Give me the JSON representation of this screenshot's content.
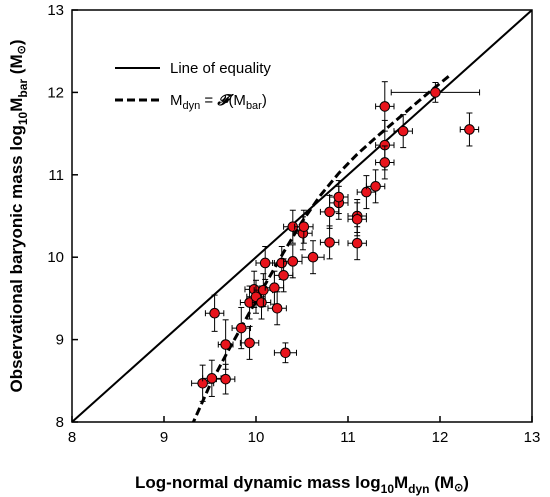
{
  "chart_data": {
    "type": "scatter",
    "title": "",
    "xlim": [
      8,
      13
    ],
    "ylim": [
      8,
      13
    ],
    "x_ticks": [
      "8",
      "9",
      "10",
      "11",
      "12",
      "13"
    ],
    "y_ticks": [
      "8",
      "9",
      "10",
      "11",
      "12",
      "13"
    ],
    "xlabel": {
      "main": "Log-normal dynamic mass log",
      "sub1": "10",
      "mid": "M",
      "sub2": "dyn",
      "unit": " (M",
      "sun": "⊙",
      "close": ")"
    },
    "ylabel": {
      "main": "Observational  baryonic mass log",
      "sub1": "10",
      "mid": "M",
      "sub2": "bar",
      "unit": " (M",
      "sun": "⊙",
      "close": ")"
    },
    "legend": {
      "position": "top-left",
      "line_of_equality": "Line of equality",
      "fit_main": "M",
      "fit_sub": "dyn",
      "fit_eq": " = ",
      "fit_func": "𝓕",
      "fit_arg_open": "(M",
      "fit_arg_sub": "bar",
      "fit_arg_close": ")"
    },
    "series": [
      {
        "style": "solid",
        "x": [
          8,
          13
        ],
        "y": [
          8,
          13
        ]
      },
      {
        "style": "dashed",
        "x": [
          9.3,
          9.5,
          9.7,
          9.9,
          10.1,
          10.3,
          10.5,
          10.7,
          10.9,
          11.1,
          11.3,
          11.5,
          11.7,
          11.9,
          12.1
        ],
        "y": [
          7.95,
          8.45,
          8.87,
          9.27,
          9.67,
          10.06,
          10.43,
          10.75,
          11.02,
          11.25,
          11.45,
          11.64,
          11.83,
          12.02,
          12.2
        ]
      }
    ],
    "points": [
      {
        "x": 9.42,
        "y": 8.47,
        "xerr": 0.12,
        "yerr": 0.22
      },
      {
        "x": 9.52,
        "y": 8.53,
        "xerr": 0.1,
        "yerr": 0.22
      },
      {
        "x": 9.55,
        "y": 9.32,
        "xerr": 0.1,
        "yerr": 0.22
      },
      {
        "x": 9.67,
        "y": 8.52,
        "xerr": 0.1,
        "yerr": 0.18
      },
      {
        "x": 9.67,
        "y": 8.94,
        "xerr": 0.08,
        "yerr": 0.3
      },
      {
        "x": 9.84,
        "y": 9.14,
        "xerr": 0.1,
        "yerr": 0.25
      },
      {
        "x": 9.93,
        "y": 8.96,
        "xerr": 0.1,
        "yerr": 0.2
      },
      {
        "x": 9.93,
        "y": 9.45,
        "xerr": 0.1,
        "yerr": 0.2
      },
      {
        "x": 9.98,
        "y": 9.61,
        "xerr": 0.1,
        "yerr": 0.22
      },
      {
        "x": 10.0,
        "y": 9.52,
        "xerr": 0.1,
        "yerr": 0.2
      },
      {
        "x": 10.06,
        "y": 9.45,
        "xerr": 0.1,
        "yerr": 0.2
      },
      {
        "x": 10.08,
        "y": 9.6,
        "xerr": 0.1,
        "yerr": 0.2
      },
      {
        "x": 10.1,
        "y": 9.93,
        "xerr": 0.1,
        "yerr": 0.2
      },
      {
        "x": 10.2,
        "y": 9.63,
        "xerr": 0.1,
        "yerr": 0.2
      },
      {
        "x": 10.23,
        "y": 9.38,
        "xerr": 0.1,
        "yerr": 0.2
      },
      {
        "x": 10.28,
        "y": 9.93,
        "xerr": 0.1,
        "yerr": 0.2
      },
      {
        "x": 10.3,
        "y": 9.78,
        "xerr": 0.1,
        "yerr": 0.2
      },
      {
        "x": 10.32,
        "y": 8.84,
        "xerr": 0.12,
        "yerr": 0.12
      },
      {
        "x": 10.4,
        "y": 9.95,
        "xerr": 0.1,
        "yerr": 0.2
      },
      {
        "x": 10.4,
        "y": 10.37,
        "xerr": 0.1,
        "yerr": 0.2
      },
      {
        "x": 10.51,
        "y": 10.29,
        "xerr": 0.1,
        "yerr": 0.2
      },
      {
        "x": 10.52,
        "y": 10.37,
        "xerr": 0.1,
        "yerr": 0.2
      },
      {
        "x": 10.62,
        "y": 10.0,
        "xerr": 0.12,
        "yerr": 0.2
      },
      {
        "x": 10.8,
        "y": 10.55,
        "xerr": 0.1,
        "yerr": 0.2
      },
      {
        "x": 10.8,
        "y": 10.18,
        "xerr": 0.1,
        "yerr": 0.2
      },
      {
        "x": 10.9,
        "y": 10.66,
        "xerr": 0.1,
        "yerr": 0.2
      },
      {
        "x": 10.9,
        "y": 10.73,
        "xerr": 0.1,
        "yerr": 0.2
      },
      {
        "x": 11.1,
        "y": 10.5,
        "xerr": 0.1,
        "yerr": 0.2
      },
      {
        "x": 11.1,
        "y": 10.46,
        "xerr": 0.1,
        "yerr": 0.2
      },
      {
        "x": 11.1,
        "y": 10.17,
        "xerr": 0.1,
        "yerr": 0.2
      },
      {
        "x": 11.2,
        "y": 10.79,
        "xerr": 0.1,
        "yerr": 0.2
      },
      {
        "x": 11.3,
        "y": 10.86,
        "xerr": 0.1,
        "yerr": 0.2
      },
      {
        "x": 11.4,
        "y": 11.83,
        "xerr": 0.1,
        "yerr": 0.3
      },
      {
        "x": 11.4,
        "y": 11.36,
        "xerr": 0.1,
        "yerr": 0.3
      },
      {
        "x": 11.4,
        "y": 11.15,
        "xerr": 0.1,
        "yerr": 0.2
      },
      {
        "x": 11.6,
        "y": 11.53,
        "xerr": 0.1,
        "yerr": 0.2
      },
      {
        "x": 11.95,
        "y": 12.0,
        "xerr": 0.48,
        "yerr": 0.12
      },
      {
        "x": 12.32,
        "y": 11.55,
        "xerr": 0.1,
        "yerr": 0.2
      }
    ]
  }
}
